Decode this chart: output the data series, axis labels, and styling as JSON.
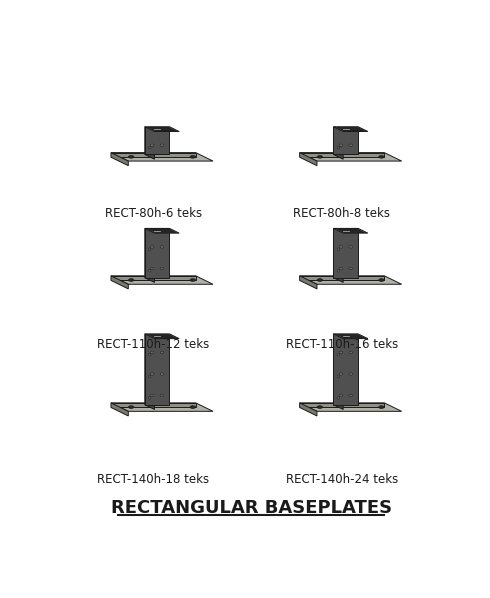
{
  "title": "RECTANGULAR BASEPLATES",
  "background_color": "#ffffff",
  "items": [
    {
      "label": "RECT-80h-6 teks",
      "row": 0,
      "col": 0,
      "tube_rows": 1
    },
    {
      "label": "RECT-80h-8 teks",
      "row": 0,
      "col": 1,
      "tube_rows": 1
    },
    {
      "label": "RECT-110h-12 teks",
      "row": 1,
      "col": 0,
      "tube_rows": 2
    },
    {
      "label": "RECT-110h-16 teks",
      "row": 1,
      "col": 1,
      "tube_rows": 2
    },
    {
      "label": "RECT-140h-18 teks",
      "row": 2,
      "col": 0,
      "tube_rows": 3
    },
    {
      "label": "RECT-140h-24 teks",
      "row": 2,
      "col": 1,
      "tube_rows": 3
    }
  ],
  "plate_color_top": "#b0b0a8",
  "plate_color_front": "#909088",
  "plate_color_side": "#787870",
  "tube_color_front": "#505050",
  "tube_color_side": "#404040",
  "tube_color_top": "#686868",
  "outline_color": "#1a1a1a",
  "hole_color": "#2a2a2a",
  "label_fontsize": 8.5,
  "title_fontsize": 13
}
